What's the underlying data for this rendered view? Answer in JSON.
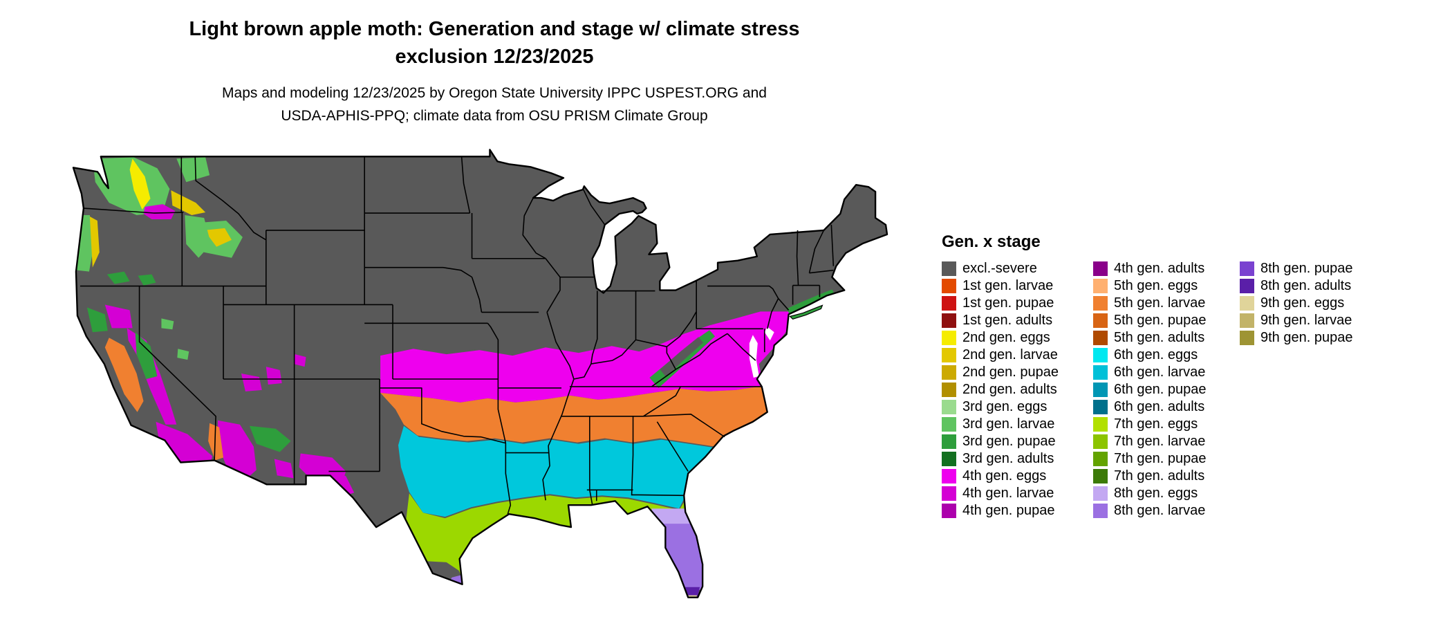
{
  "title": {
    "line1": "Light brown apple moth: Generation and stage w/ climate stress",
    "line2": "exclusion 12/23/2025"
  },
  "subtitle": {
    "line1": "Maps and modeling 12/23/2025 by Oregon State University IPPC USPEST.ORG and",
    "line2": "USDA-APHIS-PPQ; climate data from OSU PRISM Climate Group"
  },
  "legend": {
    "title": "Gen. x stage",
    "columns": [
      {
        "items": [
          {
            "label": "excl.-severe",
            "color": "#595959"
          },
          {
            "label": "1st gen. larvae",
            "color": "#E34A00"
          },
          {
            "label": "1st gen. pupae",
            "color": "#CE1212"
          },
          {
            "label": "1st gen. adults",
            "color": "#8F1010"
          },
          {
            "label": "2nd gen. eggs",
            "color": "#F5EC00"
          },
          {
            "label": "2nd gen. larvae",
            "color": "#E3C800"
          },
          {
            "label": "2nd gen. pupae",
            "color": "#CCAA00"
          },
          {
            "label": "2nd gen. adults",
            "color": "#B18F00"
          },
          {
            "label": "3rd gen. eggs",
            "color": "#9ADB8E"
          },
          {
            "label": "3rd gen. larvae",
            "color": "#5FC460"
          },
          {
            "label": "3rd gen. pupae",
            "color": "#2E9E3C"
          },
          {
            "label": "3rd gen. adults",
            "color": "#137020"
          },
          {
            "label": "4th gen. eggs",
            "color": "#EE00EE"
          },
          {
            "label": "4th gen. larvae",
            "color": "#D400D4"
          },
          {
            "label": "4th gen. pupae",
            "color": "#AC00AC"
          }
        ]
      },
      {
        "items": [
          {
            "label": "4th gen. adults",
            "color": "#8A008A"
          },
          {
            "label": "5th gen. eggs",
            "color": "#FFB070"
          },
          {
            "label": "5th gen. larvae",
            "color": "#F08030"
          },
          {
            "label": "5th gen. pupae",
            "color": "#D86414"
          },
          {
            "label": "5th gen. adults",
            "color": "#B04A00"
          },
          {
            "label": "6th gen. eggs",
            "color": "#00E8F0"
          },
          {
            "label": "6th gen. larvae",
            "color": "#00C0D8"
          },
          {
            "label": "6th gen. pupae",
            "color": "#0096B4"
          },
          {
            "label": "6th gen. adults",
            "color": "#00708C"
          },
          {
            "label": "7th gen. eggs",
            "color": "#B2E000"
          },
          {
            "label": "7th gen. larvae",
            "color": "#8CC400"
          },
          {
            "label": "7th gen. pupae",
            "color": "#63A300"
          },
          {
            "label": "7th gen. adults",
            "color": "#3C7A08"
          },
          {
            "label": "8th gen. eggs",
            "color": "#C3A8F2"
          },
          {
            "label": "8th gen. larvae",
            "color": "#9B70E2"
          }
        ]
      },
      {
        "items": [
          {
            "label": "8th gen. pupae",
            "color": "#7A42D0"
          },
          {
            "label": "8th gen. adults",
            "color": "#5A1FA8"
          },
          {
            "label": "9th gen. eggs",
            "color": "#E0D49A"
          },
          {
            "label": "9th gen. larvae",
            "color": "#C2B368"
          },
          {
            "label": "9th gen. pupae",
            "color": "#9E9434"
          }
        ]
      }
    ]
  },
  "colors": {
    "excl": "#595959",
    "g2_eggs": "#F5EC00",
    "g2_larvae": "#E3C800",
    "g3_larvae": "#5FC460",
    "g3_pupae": "#2E9E3C",
    "g4_eggs": "#EE00EE",
    "g4_larvae": "#D400D4",
    "g5_larvae": "#F08030",
    "g6_band": "#00C8DC",
    "g7_band": "#9CD800",
    "fl_lavender": "#C3A8F2",
    "fl_purple": "#9B70E2",
    "fl_dark_purple": "#5A1FA8",
    "keys_tan": "#E0D49A",
    "water_white": "#FFFFFF"
  }
}
